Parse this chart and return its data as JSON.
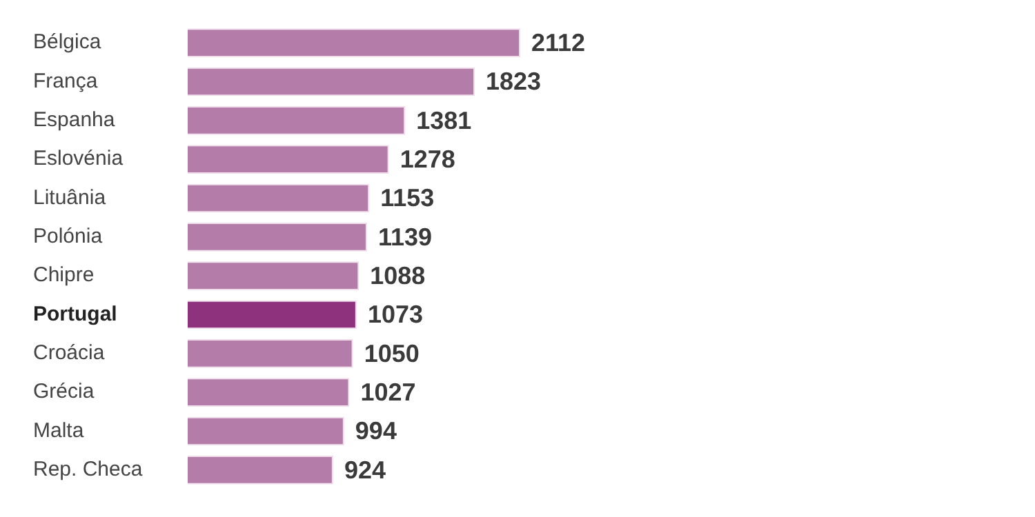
{
  "chart_data": {
    "type": "bar",
    "orientation": "horizontal",
    "categories": [
      "Bélgica",
      "França",
      "Espanha",
      "Eslovénia",
      "Lituânia",
      "Polónia",
      "Chipre",
      "Portugal",
      "Croácia",
      "Grécia",
      "Malta",
      "Rep. Checa"
    ],
    "values": [
      2112,
      1823,
      1381,
      1278,
      1153,
      1139,
      1088,
      1073,
      1050,
      1027,
      994,
      924
    ],
    "colors": [
      "#b37ca9",
      "#b37ca9",
      "#b37ca9",
      "#b37ca9",
      "#b37ca9",
      "#b37ca9",
      "#b37ca9",
      "#8f327e",
      "#b37ca9",
      "#b37ca9",
      "#b37ca9",
      "#b37ca9"
    ],
    "data_labels": true
  }
}
